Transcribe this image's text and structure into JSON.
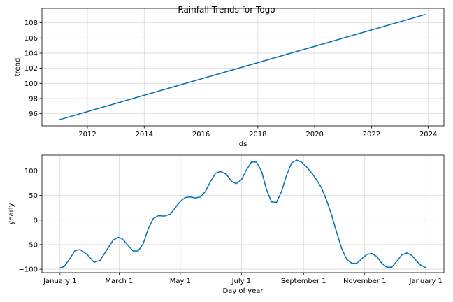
{
  "title": "Rainfall Trends for Togo",
  "chart_data": [
    {
      "type": "line",
      "xlabel": "ds",
      "ylabel": "trend",
      "x_tick_labels": [
        "2012",
        "2014",
        "2016",
        "2018",
        "2020",
        "2022",
        "2024"
      ],
      "x_tick_values": [
        2012,
        2014,
        2016,
        2018,
        2020,
        2022,
        2024
      ],
      "y_tick_labels": [
        "96",
        "98",
        "100",
        "102",
        "104",
        "106",
        "108"
      ],
      "y_tick_values": [
        96,
        98,
        100,
        102,
        104,
        106,
        108
      ],
      "xlim": [
        2010.4,
        2024.55
      ],
      "ylim": [
        94.4,
        109.9
      ],
      "grid": true,
      "series": [
        {
          "x": [
            2011.0,
            2023.9
          ],
          "y": [
            95.2,
            109.1
          ]
        }
      ]
    },
    {
      "type": "line",
      "xlabel": "Day of year",
      "ylabel": "yearly",
      "x_tick_labels": [
        "January 1",
        "March 1",
        "May 1",
        "July 1",
        "September 1",
        "November 1",
        "January 1"
      ],
      "x_tick_values": [
        0,
        59,
        120,
        181,
        243,
        304,
        365
      ],
      "y_tick_labels": [
        "100",
        "50",
        "0",
        "−50",
        "−100"
      ],
      "y_tick_values": [
        100,
        50,
        0,
        -50,
        -100
      ],
      "xlim": [
        -18,
        383
      ],
      "ylim": [
        -107,
        132
      ],
      "grid": true,
      "series": [
        {
          "x": [
            0,
            4,
            10,
            15,
            20,
            27,
            34,
            40,
            46,
            53,
            58,
            62,
            68,
            73,
            78,
            83,
            88,
            93,
            98,
            104,
            110,
            115,
            120,
            125,
            130,
            135,
            140,
            145,
            150,
            155,
            160,
            166,
            171,
            176,
            181,
            186,
            191,
            196,
            201,
            206,
            211,
            216,
            221,
            226,
            231,
            236,
            241,
            246,
            251,
            256,
            261,
            266,
            271,
            276,
            281,
            286,
            291,
            296,
            301,
            306,
            311,
            316,
            321,
            326,
            331,
            336,
            341,
            346,
            351,
            356,
            360,
            365
          ],
          "y": [
            -97,
            -95,
            -78,
            -62,
            -60,
            -70,
            -86,
            -82,
            -63,
            -41,
            -35,
            -38,
            -52,
            -63,
            -63,
            -48,
            -18,
            3,
            9,
            8,
            12,
            25,
            38,
            46,
            47,
            45,
            47,
            58,
            78,
            95,
            99,
            93,
            79,
            74,
            82,
            102,
            118,
            118,
            100,
            62,
            37,
            36,
            58,
            91,
            116,
            122,
            118,
            108,
            96,
            82,
            65,
            40,
            10,
            -25,
            -58,
            -80,
            -88,
            -88,
            -79,
            -70,
            -68,
            -74,
            -88,
            -96,
            -96,
            -84,
            -71,
            -67,
            -72,
            -84,
            -92,
            -97
          ]
        }
      ]
    }
  ]
}
